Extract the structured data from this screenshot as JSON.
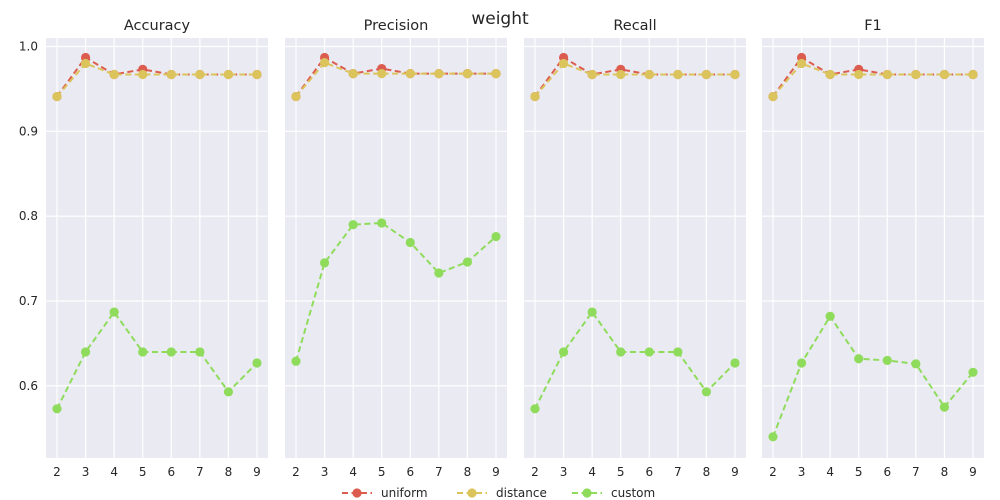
{
  "chart_data": {
    "suptitle": "weight",
    "type": "line",
    "x": [
      2,
      3,
      4,
      5,
      6,
      7,
      8,
      9
    ],
    "xticks": [
      "2",
      "3",
      "4",
      "5",
      "6",
      "7",
      "8",
      "9"
    ],
    "ylim": [
      0.515,
      1.01
    ],
    "yticks": [
      "0.6",
      "0.7",
      "0.8",
      "0.9",
      "1.0"
    ],
    "ytick_values": [
      0.6,
      0.7,
      0.8,
      0.9,
      1.0
    ],
    "grid": true,
    "sharey": true,
    "legend_position": "bottom-center",
    "series_styles": [
      {
        "name": "uniform",
        "color": "#dc5c4f"
      },
      {
        "name": "distance",
        "color": "#dcc45c"
      },
      {
        "name": "custom",
        "color": "#8fdc5c"
      }
    ],
    "panels": [
      {
        "title": "Accuracy",
        "series": [
          {
            "name": "uniform",
            "values": [
              0.941,
              0.987,
              0.967,
              0.973,
              0.967,
              0.967,
              0.967,
              0.967
            ]
          },
          {
            "name": "distance",
            "values": [
              0.941,
              0.98,
              0.967,
              0.967,
              0.967,
              0.967,
              0.967,
              0.967
            ]
          },
          {
            "name": "custom",
            "values": [
              0.573,
              0.64,
              0.687,
              0.64,
              0.64,
              0.64,
              0.593,
              0.627
            ]
          }
        ]
      },
      {
        "title": "Precision",
        "series": [
          {
            "name": "uniform",
            "values": [
              0.941,
              0.987,
              0.968,
              0.974,
              0.968,
              0.968,
              0.968,
              0.968
            ]
          },
          {
            "name": "distance",
            "values": [
              0.941,
              0.981,
              0.968,
              0.968,
              0.968,
              0.968,
              0.968,
              0.968
            ]
          },
          {
            "name": "custom",
            "values": [
              0.629,
              0.745,
              0.79,
              0.792,
              0.769,
              0.733,
              0.746,
              0.776
            ]
          }
        ]
      },
      {
        "title": "Recall",
        "series": [
          {
            "name": "uniform",
            "values": [
              0.941,
              0.987,
              0.967,
              0.973,
              0.967,
              0.967,
              0.967,
              0.967
            ]
          },
          {
            "name": "distance",
            "values": [
              0.941,
              0.98,
              0.967,
              0.967,
              0.967,
              0.967,
              0.967,
              0.967
            ]
          },
          {
            "name": "custom",
            "values": [
              0.573,
              0.64,
              0.687,
              0.64,
              0.64,
              0.64,
              0.593,
              0.627
            ]
          }
        ]
      },
      {
        "title": "F1",
        "series": [
          {
            "name": "uniform",
            "values": [
              0.941,
              0.987,
              0.967,
              0.973,
              0.967,
              0.967,
              0.967,
              0.967
            ]
          },
          {
            "name": "distance",
            "values": [
              0.941,
              0.98,
              0.967,
              0.967,
              0.967,
              0.967,
              0.967,
              0.967
            ]
          },
          {
            "name": "custom",
            "values": [
              0.54,
              0.627,
              0.682,
              0.632,
              0.63,
              0.626,
              0.575,
              0.616
            ]
          }
        ]
      }
    ]
  }
}
